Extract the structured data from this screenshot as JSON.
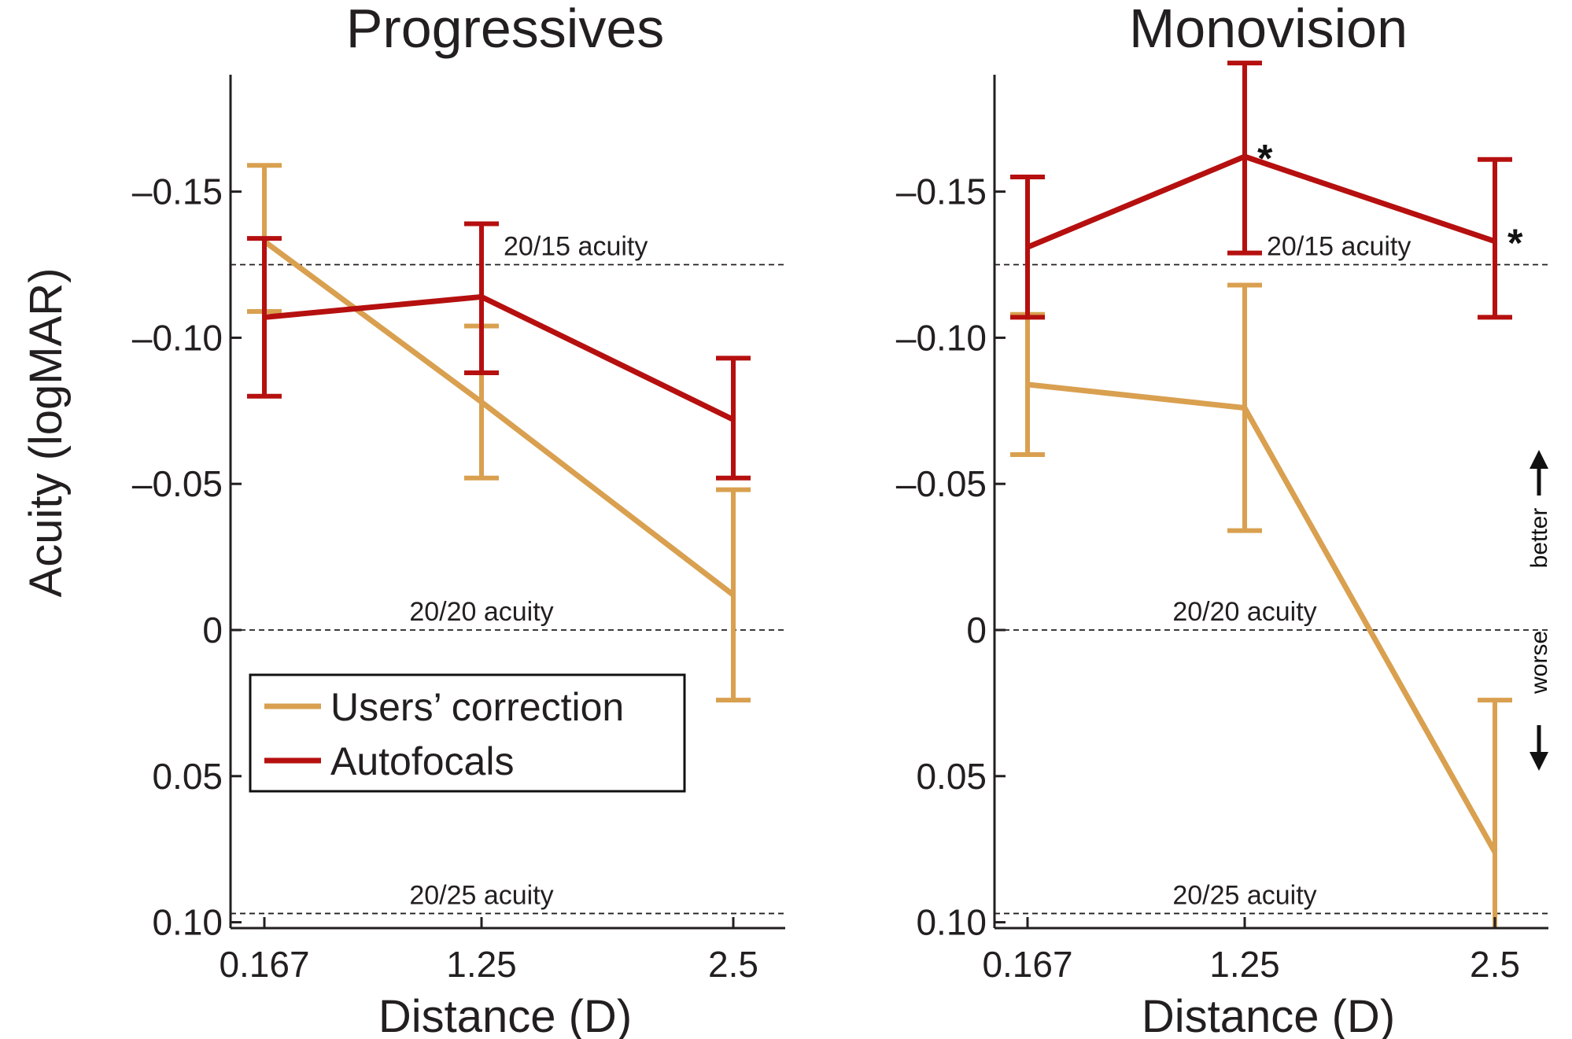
{
  "colors": {
    "users_correction": "#d9a050",
    "autofocals": "#b5100f",
    "axis": "#231f20"
  },
  "chart_data": [
    {
      "type": "line",
      "title": "Progressives",
      "xlabel": "Distance (D)",
      "ylabel": "Acuity (logMAR)",
      "categories": [
        "0.167",
        "1.25",
        "2.5"
      ],
      "ylim": [
        0.102,
        -0.19
      ],
      "y_inverted": true,
      "yticks": [
        -0.15,
        -0.1,
        -0.05,
        0,
        0.05,
        0.1
      ],
      "ytick_labels": [
        "–0.15",
        "–0.10",
        "–0.05",
        "0",
        "0.05",
        "0.10"
      ],
      "reference_lines": [
        {
          "y": -0.125,
          "label": "20/15 acuity"
        },
        {
          "y": 0,
          "label": "20/20 acuity"
        },
        {
          "y": 0.097,
          "label": "20/25 acuity"
        }
      ],
      "legend": [
        "Users’ correction",
        "Autofocals"
      ],
      "series": [
        {
          "name": "Users’ correction",
          "color_key": "users_correction",
          "values": [
            -0.133,
            -0.078,
            -0.012
          ],
          "err_low": [
            -0.109,
            -0.052,
            0.024
          ],
          "err_high": [
            -0.159,
            -0.104,
            -0.048
          ]
        },
        {
          "name": "Autofocals",
          "color_key": "autofocals",
          "values": [
            -0.107,
            -0.114,
            -0.072
          ],
          "err_low": [
            -0.08,
            -0.088,
            -0.052
          ],
          "err_high": [
            -0.134,
            -0.139,
            -0.093
          ]
        }
      ],
      "annotations": []
    },
    {
      "type": "line",
      "title": "Monovision",
      "xlabel": "Distance (D)",
      "ylabel": "",
      "categories": [
        "0.167",
        "1.25",
        "2.5"
      ],
      "ylim": [
        0.102,
        -0.19
      ],
      "y_inverted": true,
      "yticks": [
        -0.15,
        -0.1,
        -0.05,
        0,
        0.05,
        0.1
      ],
      "ytick_labels": [
        "–0.15",
        "–0.10",
        "–0.05",
        "0",
        "0.05",
        "0.10"
      ],
      "reference_lines": [
        {
          "y": -0.125,
          "label": "20/15 acuity"
        },
        {
          "y": 0,
          "label": "20/20 acuity"
        },
        {
          "y": 0.097,
          "label": "20/25 acuity"
        }
      ],
      "series": [
        {
          "name": "Users’ correction",
          "color_key": "users_correction",
          "values": [
            -0.084,
            -0.076,
            0.076
          ],
          "err_low": [
            -0.06,
            -0.034,
            0.112
          ],
          "err_high": [
            -0.108,
            -0.118,
            0.024
          ]
        },
        {
          "name": "Autofocals",
          "color_key": "autofocals",
          "values": [
            -0.131,
            -0.162,
            -0.133
          ],
          "err_low": [
            -0.107,
            -0.129,
            -0.107
          ],
          "err_high": [
            -0.155,
            -0.194,
            -0.161
          ]
        }
      ],
      "annotations": [
        {
          "text": "*",
          "category": "1.25",
          "y": -0.16
        },
        {
          "text": "*",
          "category": "2.5",
          "y": -0.131
        }
      ],
      "direction_labels": {
        "better": "better",
        "worse": "worse"
      }
    }
  ]
}
